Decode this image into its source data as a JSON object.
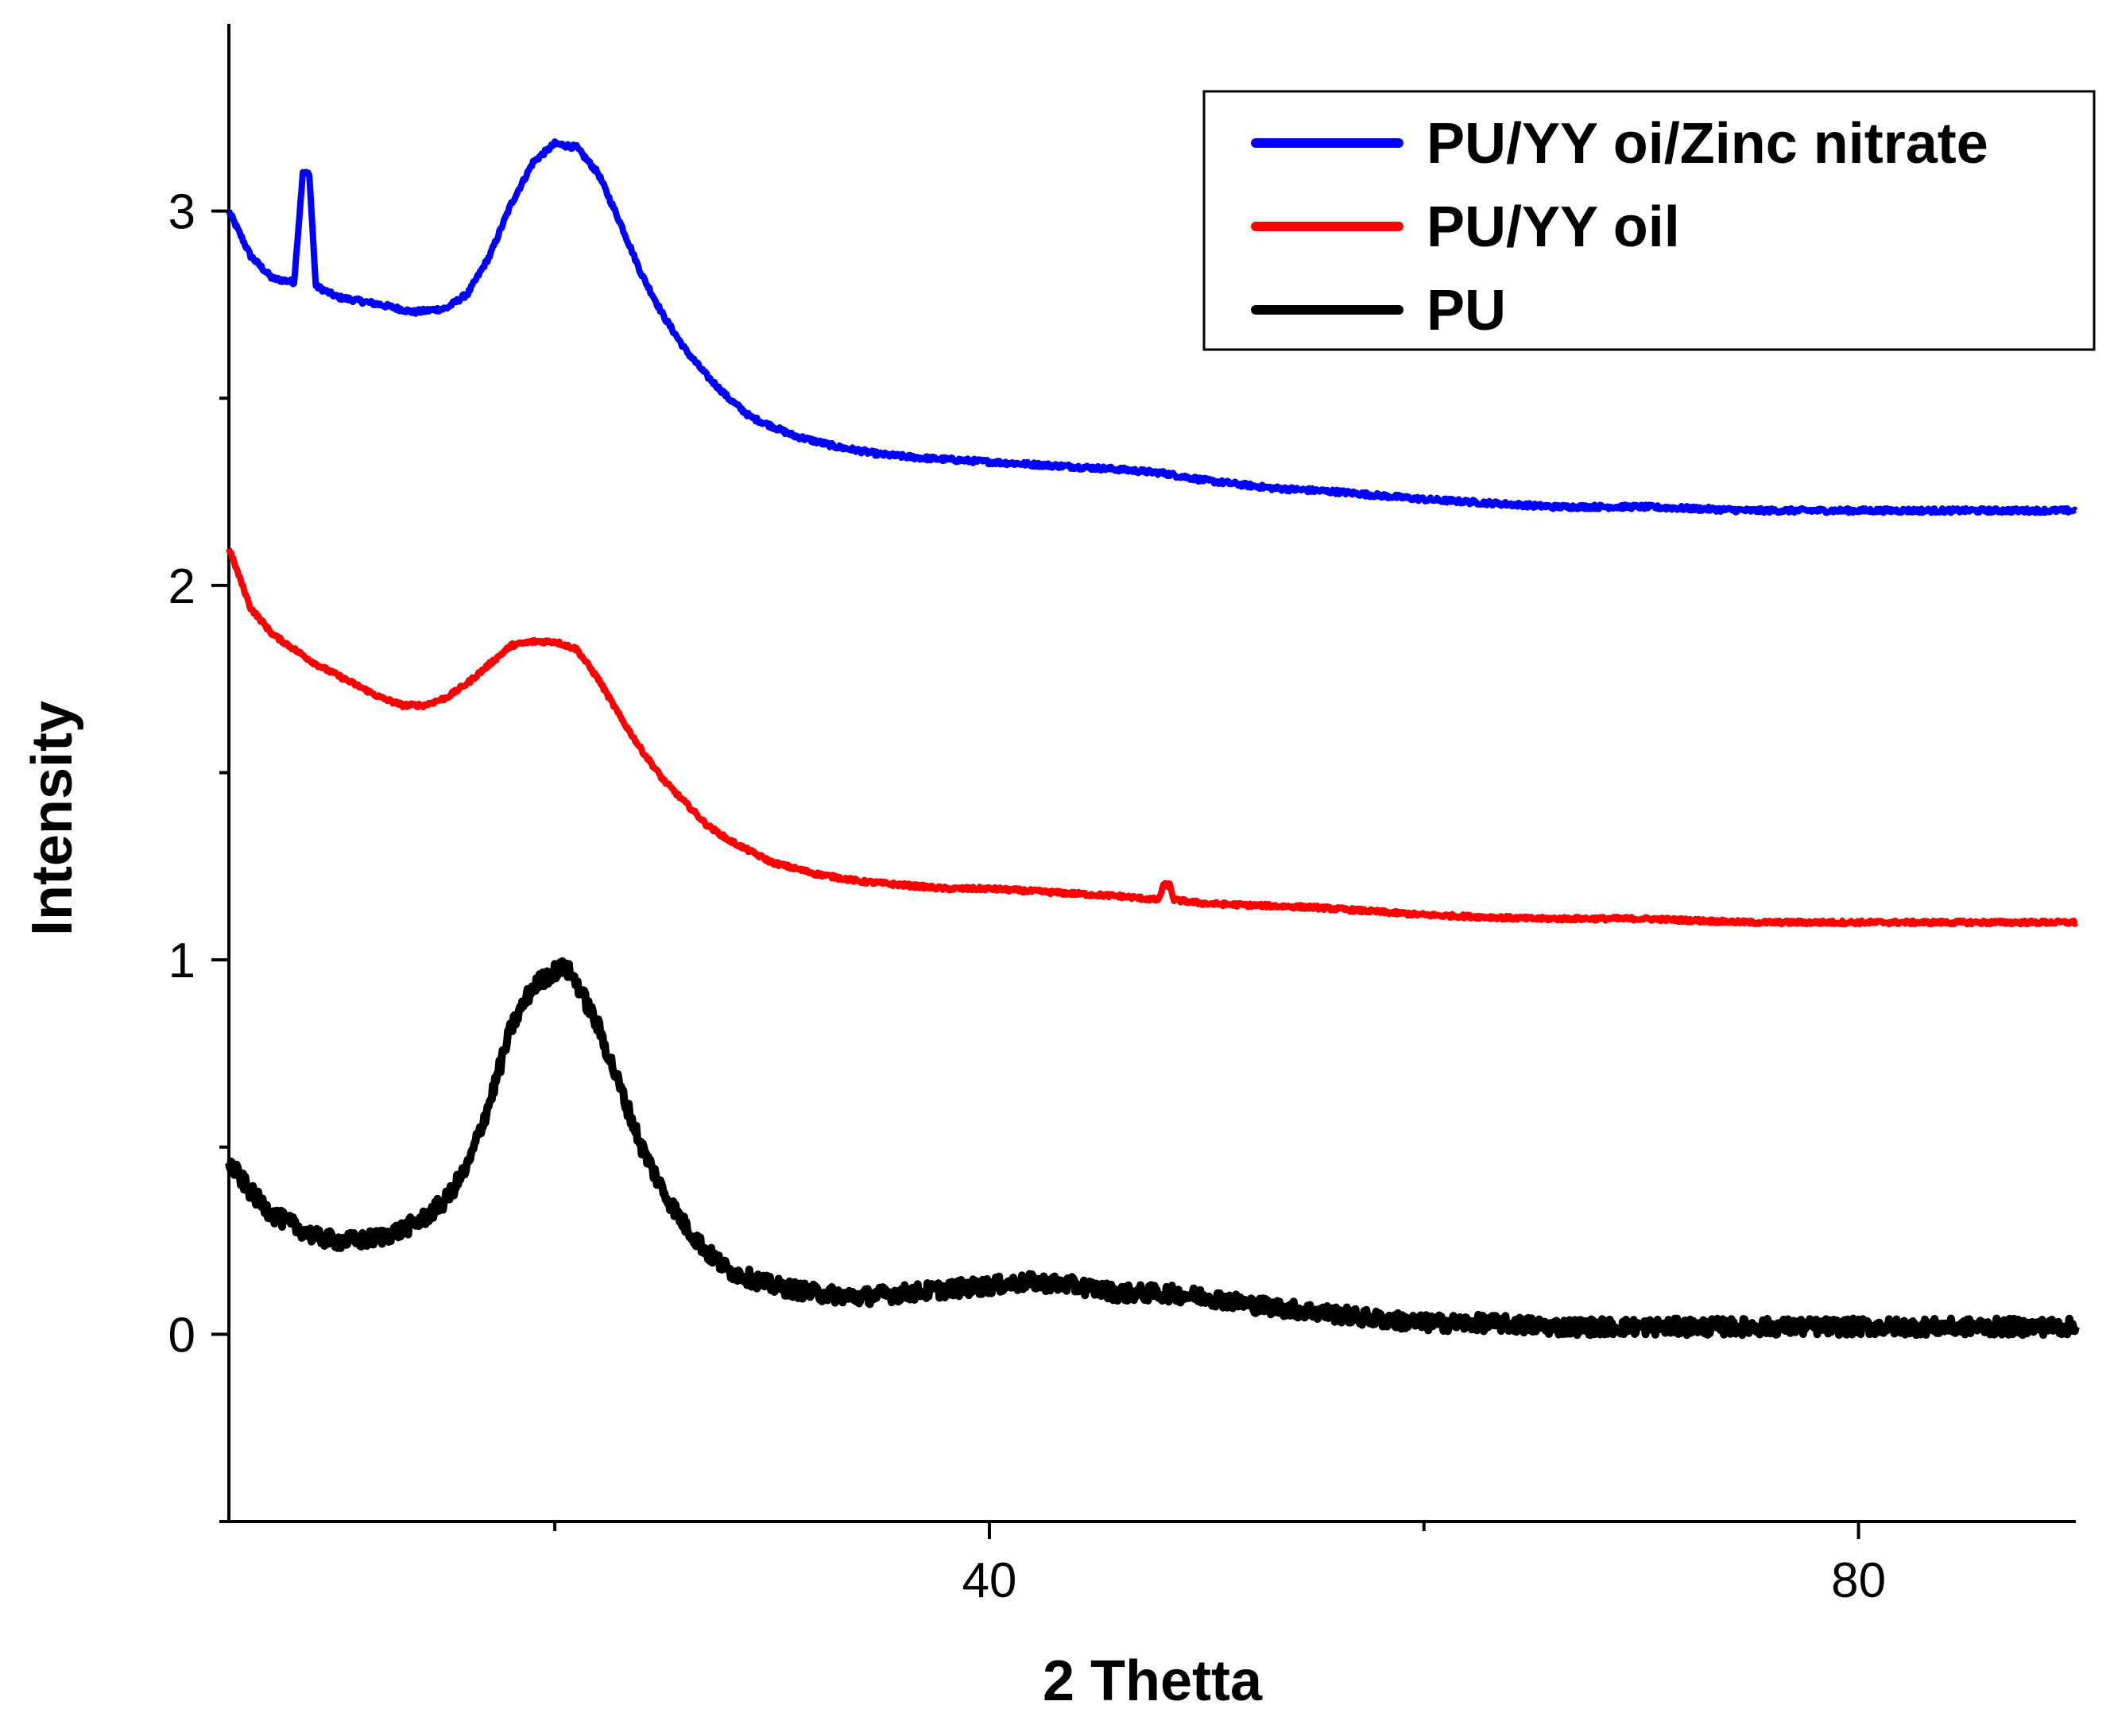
{
  "chart_data": {
    "type": "line",
    "title": "",
    "xlabel": "2 Thetta",
    "ylabel": "Intensity",
    "xlim": [
      5,
      90
    ],
    "ylim": [
      -0.5,
      3.5
    ],
    "xticks": [
      40,
      80
    ],
    "xticks_minor": [
      20,
      60
    ],
    "yticks": [
      0,
      1,
      2,
      3
    ],
    "yticks_minor": [
      -0.5,
      0.5,
      1.5,
      2.5
    ],
    "grid": false,
    "legend_position": "top-right",
    "series": [
      {
        "name": "PU/YY oi/Zinc nitrate",
        "color": "#0000ff",
        "noise": 0.006,
        "points": [
          [
            5,
            3.0
          ],
          [
            6,
            2.88
          ],
          [
            7,
            2.82
          ],
          [
            8,
            2.81
          ],
          [
            8.4,
            3.1
          ],
          [
            8.7,
            3.1
          ],
          [
            9,
            2.8
          ],
          [
            10,
            2.77
          ],
          [
            12,
            2.75
          ],
          [
            13.5,
            2.73
          ],
          [
            15,
            2.74
          ],
          [
            16,
            2.78
          ],
          [
            17,
            2.88
          ],
          [
            18,
            3.02
          ],
          [
            19,
            3.13
          ],
          [
            20,
            3.18
          ],
          [
            21,
            3.17
          ],
          [
            22,
            3.1
          ],
          [
            23,
            2.97
          ],
          [
            24,
            2.83
          ],
          [
            25,
            2.72
          ],
          [
            26,
            2.63
          ],
          [
            27,
            2.56
          ],
          [
            28,
            2.5
          ],
          [
            29,
            2.45
          ],
          [
            31,
            2.4
          ],
          [
            33,
            2.37
          ],
          [
            35,
            2.35
          ],
          [
            37,
            2.34
          ],
          [
            40,
            2.33
          ],
          [
            43,
            2.32
          ],
          [
            46,
            2.31
          ],
          [
            48,
            2.3
          ],
          [
            50,
            2.28
          ],
          [
            53,
            2.26
          ],
          [
            56,
            2.25
          ],
          [
            60,
            2.23
          ],
          [
            63,
            2.22
          ],
          [
            66,
            2.21
          ],
          [
            70,
            2.21
          ],
          [
            75,
            2.2
          ],
          [
            80,
            2.2
          ],
          [
            85,
            2.2
          ],
          [
            90,
            2.2
          ]
        ]
      },
      {
        "name": "PU/YY oil",
        "color": "#ff0000",
        "noise": 0.005,
        "points": [
          [
            5,
            2.1
          ],
          [
            6,
            1.94
          ],
          [
            7,
            1.87
          ],
          [
            8,
            1.83
          ],
          [
            9,
            1.79
          ],
          [
            10,
            1.76
          ],
          [
            11,
            1.73
          ],
          [
            12,
            1.7
          ],
          [
            13,
            1.68
          ],
          [
            14,
            1.68
          ],
          [
            15,
            1.7
          ],
          [
            16,
            1.74
          ],
          [
            17,
            1.79
          ],
          [
            18,
            1.84
          ],
          [
            19,
            1.85
          ],
          [
            20,
            1.85
          ],
          [
            21,
            1.83
          ],
          [
            22,
            1.75
          ],
          [
            23,
            1.65
          ],
          [
            24,
            1.56
          ],
          [
            25,
            1.48
          ],
          [
            26,
            1.42
          ],
          [
            27,
            1.36
          ],
          [
            28,
            1.32
          ],
          [
            29,
            1.29
          ],
          [
            30,
            1.26
          ],
          [
            32,
            1.23
          ],
          [
            34,
            1.21
          ],
          [
            36,
            1.2
          ],
          [
            38,
            1.19
          ],
          [
            40,
            1.19
          ],
          [
            43,
            1.18
          ],
          [
            46,
            1.17
          ],
          [
            47.8,
            1.16
          ],
          [
            48,
            1.2
          ],
          [
            48.3,
            1.2
          ],
          [
            48.5,
            1.16
          ],
          [
            50,
            1.15
          ],
          [
            55,
            1.14
          ],
          [
            60,
            1.12
          ],
          [
            65,
            1.11
          ],
          [
            70,
            1.11
          ],
          [
            75,
            1.1
          ],
          [
            80,
            1.1
          ],
          [
            85,
            1.1
          ],
          [
            90,
            1.1
          ]
        ]
      },
      {
        "name": "PU",
        "color": "#000000",
        "noise": 0.022,
        "points": [
          [
            5,
            0.46
          ],
          [
            6,
            0.38
          ],
          [
            7,
            0.32
          ],
          [
            8,
            0.29
          ],
          [
            9,
            0.26
          ],
          [
            10,
            0.25
          ],
          [
            11,
            0.25
          ],
          [
            12,
            0.26
          ],
          [
            13,
            0.28
          ],
          [
            14,
            0.31
          ],
          [
            15,
            0.36
          ],
          [
            16,
            0.45
          ],
          [
            17,
            0.62
          ],
          [
            18,
            0.82
          ],
          [
            19,
            0.93
          ],
          [
            20,
            0.97
          ],
          [
            20.5,
            0.98
          ],
          [
            21,
            0.94
          ],
          [
            22,
            0.82
          ],
          [
            23,
            0.66
          ],
          [
            24,
            0.5
          ],
          [
            25,
            0.38
          ],
          [
            26,
            0.29
          ],
          [
            27,
            0.22
          ],
          [
            28,
            0.17
          ],
          [
            29,
            0.15
          ],
          [
            30,
            0.13
          ],
          [
            32,
            0.11
          ],
          [
            34,
            0.1
          ],
          [
            36,
            0.11
          ],
          [
            38,
            0.12
          ],
          [
            40,
            0.13
          ],
          [
            42,
            0.14
          ],
          [
            44,
            0.13
          ],
          [
            46,
            0.11
          ],
          [
            48,
            0.11
          ],
          [
            50,
            0.1
          ],
          [
            52,
            0.08
          ],
          [
            55,
            0.06
          ],
          [
            58,
            0.04
          ],
          [
            60,
            0.03
          ],
          [
            63,
            0.03
          ],
          [
            66,
            0.02
          ],
          [
            70,
            0.02
          ],
          [
            75,
            0.02
          ],
          [
            80,
            0.02
          ],
          [
            85,
            0.02
          ],
          [
            90,
            0.02
          ]
        ]
      }
    ]
  }
}
